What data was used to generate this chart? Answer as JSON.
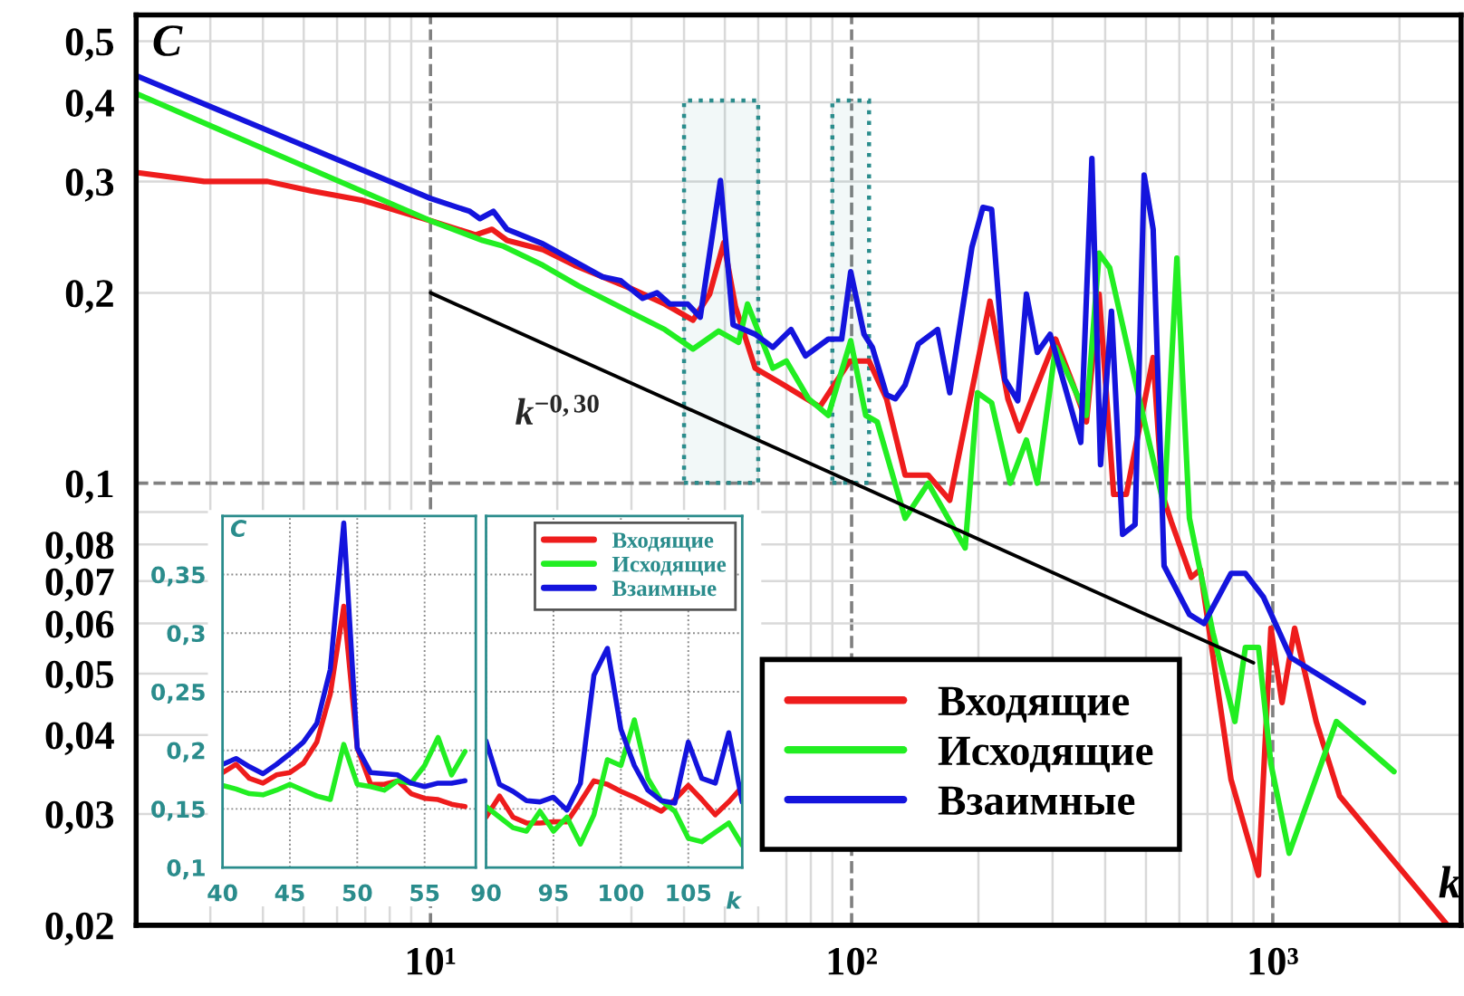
{
  "chart_data": [
    {
      "type": "line",
      "xlabel": "k",
      "ylabel": "C",
      "log": "xy",
      "grid": true,
      "legend": "bottom",
      "xlim": [
        2,
        2800
      ],
      "ylim": [
        0.02,
        0.55
      ],
      "xticks": [
        {
          "value": 2,
          "label": null
        },
        {
          "value": 3,
          "label": null
        },
        {
          "value": 4,
          "label": null
        },
        {
          "value": 5,
          "label": null
        },
        {
          "value": 6,
          "label": null
        },
        {
          "value": 7,
          "label": null
        },
        {
          "value": 8,
          "label": null
        },
        {
          "value": 9,
          "label": null
        },
        {
          "value": 10,
          "label": "10¹"
        },
        {
          "value": 20,
          "label": null
        },
        {
          "value": 30,
          "label": null
        },
        {
          "value": 40,
          "label": null
        },
        {
          "value": 50,
          "label": null
        },
        {
          "value": 60,
          "label": null
        },
        {
          "value": 70,
          "label": null
        },
        {
          "value": 80,
          "label": null
        },
        {
          "value": 90,
          "label": null
        },
        {
          "value": 100,
          "label": "10²"
        },
        {
          "value": 200,
          "label": null
        },
        {
          "value": 300,
          "label": null
        },
        {
          "value": 400,
          "label": null
        },
        {
          "value": 500,
          "label": null
        },
        {
          "value": 600,
          "label": null
        },
        {
          "value": 700,
          "label": null
        },
        {
          "value": 800,
          "label": null
        },
        {
          "value": 900,
          "label": null
        },
        {
          "value": 1000,
          "label": "10³"
        },
        {
          "value": 2000,
          "label": null
        }
      ],
      "yticks": [
        {
          "value": 0.02,
          "label": "0,02"
        },
        {
          "value": 0.03,
          "label": "0,03"
        },
        {
          "value": 0.04,
          "label": "0,04"
        },
        {
          "value": 0.05,
          "label": "0,05"
        },
        {
          "value": 0.06,
          "label": "0,06"
        },
        {
          "value": 0.07,
          "label": "0,07"
        },
        {
          "value": 0.08,
          "label": "0,08"
        },
        {
          "value": 0.09,
          "label": null
        },
        {
          "value": 0.1,
          "label": "0,1"
        },
        {
          "value": 0.2,
          "label": "0,2"
        },
        {
          "value": 0.3,
          "label": "0,3"
        },
        {
          "value": 0.4,
          "label": "0,4"
        },
        {
          "value": 0.5,
          "label": "0,5"
        }
      ],
      "series": [
        {
          "name": "Входящие",
          "color": "#ee1c1c",
          "x": [
            2,
            2.9,
            4.1,
            5.2,
            6.9,
            10,
            12.8,
            14,
            15.2,
            18.5,
            22,
            30,
            36,
            42,
            46,
            49.7,
            53,
            59,
            69,
            84,
            99,
            110,
            121,
            134,
            152,
            171,
            213,
            235,
            250,
            276,
            305,
            336,
            361,
            387,
            419,
            449,
            520,
            547,
            574,
            640,
            673,
            796,
            925,
            990,
            1052,
            1127,
            1268,
            1442,
            2600
          ],
          "values": [
            0.31,
            0.3,
            0.3,
            0.29,
            0.28,
            0.26,
            0.247,
            0.252,
            0.242,
            0.234,
            0.221,
            0.203,
            0.192,
            0.181,
            0.199,
            0.24,
            0.19,
            0.152,
            0.143,
            0.132,
            0.156,
            0.156,
            0.136,
            0.103,
            0.103,
            0.094,
            0.194,
            0.136,
            0.121,
            0.143,
            0.169,
            0.143,
            0.125,
            0.199,
            0.096,
            0.096,
            0.158,
            0.096,
            0.087,
            0.071,
            0.073,
            0.034,
            0.024,
            0.059,
            0.045,
            0.059,
            0.042,
            0.032,
            0.02
          ]
        },
        {
          "name": "Исходящие",
          "color": "#22ee22",
          "x": [
            2,
            10,
            13.3,
            14.9,
            18.5,
            22.5,
            30,
            36,
            42,
            48.3,
            53.9,
            56.6,
            65,
            70,
            79,
            88,
            99.5,
            108,
            115,
            134,
            152,
            186,
            199,
            215,
            238,
            260,
            276,
            305,
            361,
            387,
            410,
            500,
            552,
            592,
            634,
            721,
            813,
            861,
            925,
            990,
            1094,
            1416,
            1940
          ],
          "values": [
            0.413,
            0.26,
            0.242,
            0.237,
            0.221,
            0.205,
            0.186,
            0.175,
            0.163,
            0.174,
            0.167,
            0.192,
            0.152,
            0.156,
            0.136,
            0.128,
            0.168,
            0.128,
            0.125,
            0.088,
            0.1,
            0.079,
            0.139,
            0.134,
            0.1,
            0.117,
            0.1,
            0.164,
            0.128,
            0.231,
            0.219,
            0.122,
            0.092,
            0.227,
            0.088,
            0.058,
            0.042,
            0.055,
            0.055,
            0.036,
            0.026,
            0.042,
            0.035
          ]
        },
        {
          "name": "Взаимные",
          "color": "#1414dd",
          "x": [
            2,
            10,
            12.4,
            13.1,
            14.1,
            15.2,
            18.5,
            25.6,
            28.3,
            31.9,
            34.5,
            37,
            40.8,
            43.7,
            48.8,
            52.3,
            59,
            65,
            71.8,
            77.7,
            88,
            94.7,
            99.5,
            107,
            112,
            121,
            127,
            134,
            144,
            160,
            171,
            193,
            205,
            215,
            231,
            248,
            260,
            276,
            296,
            350,
            372,
            390,
            414,
            440,
            471,
            495,
            520,
            552,
            634,
            687,
            796,
            861,
            951,
            1104,
            1641
          ],
          "values": [
            0.441,
            0.282,
            0.269,
            0.262,
            0.269,
            0.252,
            0.239,
            0.212,
            0.209,
            0.196,
            0.2,
            0.192,
            0.192,
            0.183,
            0.301,
            0.178,
            0.172,
            0.164,
            0.175,
            0.159,
            0.169,
            0.169,
            0.216,
            0.172,
            0.164,
            0.138,
            0.136,
            0.143,
            0.166,
            0.175,
            0.139,
            0.236,
            0.273,
            0.271,
            0.146,
            0.135,
            0.199,
            0.161,
            0.172,
            0.116,
            0.326,
            0.107,
            0.187,
            0.083,
            0.086,
            0.307,
            0.252,
            0.074,
            0.062,
            0.06,
            0.072,
            0.072,
            0.066,
            0.053,
            0.045
          ]
        },
        {
          "color": "#000000",
          "x": [
            10,
            900
          ],
          "values": [
            0.2,
            0.052
          ]
        }
      ],
      "annotations": [
        "k$^{−0,30}$"
      ],
      "bands": [
        {
          "axis": "x",
          "from": 40,
          "to": 60,
          "color": "#2a8c8c"
        },
        {
          "axis": "x",
          "from": 90,
          "to": 110,
          "color": "#2a8c8c"
        }
      ]
    },
    {
      "type": "line",
      "ylabel": "C",
      "grid": true,
      "xlim": [
        40,
        58.8
      ],
      "ylim": [
        0.1,
        0.4
      ],
      "xticks": [
        40,
        45,
        50,
        55
      ],
      "yticks": [
        {
          "value": 0.1,
          "label": "0,1"
        },
        {
          "value": 0.15,
          "label": "0,15"
        },
        {
          "value": 0.2,
          "label": "0,2"
        },
        {
          "value": 0.25,
          "label": "0,25"
        },
        {
          "value": 0.3,
          "label": "0,3"
        },
        {
          "value": 0.35,
          "label": "0,35"
        }
      ],
      "x": [
        40,
        41,
        42,
        43,
        44,
        45,
        46,
        47,
        48,
        49,
        50,
        51,
        52,
        53,
        54,
        55,
        56,
        57,
        58
      ],
      "series": [
        {
          "color": "#ee1c1c",
          "values": [
            0.181,
            0.188,
            0.176,
            0.172,
            0.179,
            0.181,
            0.189,
            0.207,
            0.248,
            0.323,
            0.202,
            0.171,
            0.171,
            0.174,
            0.163,
            0.159,
            0.158,
            0.154,
            0.152
          ]
        },
        {
          "color": "#22ee22",
          "values": [
            0.17,
            0.167,
            0.163,
            0.162,
            0.166,
            0.171,
            0.166,
            0.161,
            0.158,
            0.205,
            0.171,
            0.169,
            0.166,
            0.174,
            0.172,
            0.187,
            0.211,
            0.179,
            0.199
          ]
        },
        {
          "color": "#1414dd",
          "values": [
            0.188,
            0.193,
            0.186,
            0.18,
            0.188,
            0.197,
            0.207,
            0.223,
            0.269,
            0.394,
            0.202,
            0.181,
            0.18,
            0.179,
            0.172,
            0.169,
            0.172,
            0.172,
            0.174
          ]
        }
      ]
    },
    {
      "type": "line",
      "xlabel": "k",
      "grid": true,
      "legend": "top right",
      "tick_labels": "x",
      "xlim": [
        90,
        109
      ],
      "ylim": [
        0.1,
        0.4
      ],
      "xticks": [
        90,
        95,
        100,
        105
      ],
      "yticks": [
        0.1,
        0.15,
        0.2,
        0.25,
        0.3,
        0.35
      ],
      "x": [
        90,
        91,
        92,
        93,
        94,
        95,
        96,
        97,
        98,
        99,
        100,
        101,
        102,
        103,
        104,
        105,
        106,
        107,
        108,
        109
      ],
      "series": [
        {
          "name": "Входящие",
          "color": "#ee1c1c",
          "values": [
            0.143,
            0.161,
            0.143,
            0.138,
            0.138,
            0.139,
            0.139,
            0.156,
            0.174,
            0.171,
            0.165,
            0.16,
            0.154,
            0.148,
            0.158,
            0.17,
            0.158,
            0.145,
            0.156,
            0.169
          ]
        },
        {
          "name": "Исходящие",
          "color": "#22ee22",
          "values": [
            0.152,
            0.143,
            0.134,
            0.131,
            0.148,
            0.131,
            0.143,
            0.12,
            0.145,
            0.192,
            0.187,
            0.226,
            0.176,
            0.157,
            0.148,
            0.125,
            0.122,
            0.13,
            0.138,
            0.119
          ]
        },
        {
          "name": "Взаимные",
          "color": "#1414dd",
          "values": [
            0.208,
            0.171,
            0.165,
            0.157,
            0.156,
            0.16,
            0.149,
            0.172,
            0.264,
            0.287,
            0.218,
            0.187,
            0.166,
            0.157,
            0.155,
            0.207,
            0.176,
            0.172,
            0.215,
            0.156
          ]
        }
      ]
    }
  ]
}
